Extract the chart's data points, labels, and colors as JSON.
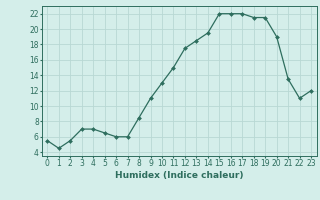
{
  "x": [
    0,
    1,
    2,
    3,
    4,
    5,
    6,
    7,
    8,
    9,
    10,
    11,
    12,
    13,
    14,
    15,
    16,
    17,
    18,
    19,
    20,
    21,
    22,
    23
  ],
  "y": [
    5.5,
    4.5,
    5.5,
    7.0,
    7.0,
    6.5,
    6.0,
    6.0,
    8.5,
    11.0,
    13.0,
    15.0,
    17.5,
    18.5,
    19.5,
    22.0,
    22.0,
    22.0,
    21.5,
    21.5,
    19.0,
    13.5,
    11.0,
    12.0
  ],
  "xlabel": "Humidex (Indice chaleur)",
  "ylabel": "",
  "xlim": [
    -0.5,
    23.5
  ],
  "ylim": [
    3.5,
    23.0
  ],
  "yticks": [
    4,
    6,
    8,
    10,
    12,
    14,
    16,
    18,
    20,
    22
  ],
  "xticks": [
    0,
    1,
    2,
    3,
    4,
    5,
    6,
    7,
    8,
    9,
    10,
    11,
    12,
    13,
    14,
    15,
    16,
    17,
    18,
    19,
    20,
    21,
    22,
    23
  ],
  "line_color": "#2e6e5e",
  "marker": "D",
  "marker_size": 2.0,
  "background_color": "#d4eeea",
  "grid_color": "#b8d8d4",
  "label_fontsize": 6.5,
  "tick_fontsize": 5.5
}
